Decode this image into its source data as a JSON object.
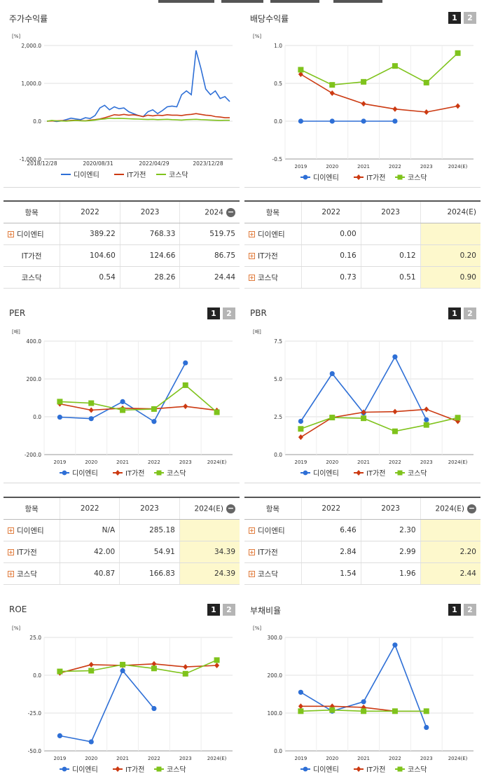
{
  "top_tabs": [
    "",
    "",
    "",
    ""
  ],
  "panels": [
    {
      "id": "stock-return",
      "title": "주가수익률",
      "buttons": []
    },
    {
      "id": "dividend",
      "title": "배당수익률",
      "buttons": [
        "1",
        "2"
      ]
    },
    {
      "id": "per",
      "title": "PER",
      "buttons": [
        "1",
        "2"
      ]
    },
    {
      "id": "pbr",
      "title": "PBR",
      "buttons": [
        "1",
        "2"
      ]
    },
    {
      "id": "roe",
      "title": "ROE",
      "buttons": [
        "1",
        "2"
      ]
    },
    {
      "id": "debt",
      "title": "부채비율",
      "buttons": [
        "1",
        "2"
      ]
    }
  ],
  "colors": {
    "blue": "#2e6fd6",
    "red": "#cc3a12",
    "green": "#7fc31c"
  },
  "legend": [
    "디이엔티",
    "IT가전",
    "코스닥"
  ],
  "chart_data": [
    {
      "id": "stock-return",
      "type": "line",
      "unit": "[%]",
      "ylim": [
        -1000,
        2000
      ],
      "yticks": [
        "2,000.0",
        "1,000.0",
        "0.0",
        "-1,000.0"
      ],
      "xticks": [
        "2018/12/28",
        "2020/08/31",
        "2022/04/29",
        "2023/12/28"
      ],
      "series": [
        {
          "name": "디이엔티",
          "color": "#2e6fd6",
          "values": [
            0,
            10,
            -10,
            5,
            40,
            80,
            60,
            40,
            90,
            70,
            150,
            350,
            420,
            300,
            380,
            330,
            350,
            250,
            200,
            150,
            120,
            250,
            300,
            200,
            280,
            380,
            400,
            380,
            700,
            800,
            700,
            1870,
            1400,
            850,
            700,
            800,
            600,
            650,
            520
          ]
        },
        {
          "name": "IT가전",
          "color": "#cc3a12",
          "values": [
            0,
            5,
            10,
            15,
            10,
            20,
            25,
            15,
            10,
            30,
            40,
            60,
            90,
            130,
            170,
            160,
            180,
            160,
            170,
            150,
            120,
            160,
            140,
            160,
            150,
            170,
            160,
            160,
            150,
            170,
            180,
            200,
            180,
            160,
            150,
            120,
            110,
            90,
            90
          ]
        },
        {
          "name": "코스닥",
          "color": "#7fc31c",
          "values": [
            0,
            20,
            10,
            5,
            0,
            10,
            20,
            10,
            5,
            15,
            30,
            50,
            60,
            80,
            70,
            75,
            70,
            65,
            60,
            55,
            50,
            45,
            50,
            40,
            45,
            50,
            40,
            35,
            30,
            40,
            45,
            50,
            40,
            35,
            30,
            25,
            20,
            25,
            25
          ]
        }
      ]
    },
    {
      "id": "dividend",
      "type": "line",
      "unit": "[%]",
      "ylim": [
        -0.5,
        1.0
      ],
      "yticks": [
        "1.0",
        "0.5",
        "0.0",
        "-0.5"
      ],
      "xticks": [
        "2019",
        "2020",
        "2021",
        "2022",
        "2023",
        "2024(E)"
      ],
      "series": [
        {
          "name": "디이엔티",
          "color": "#2e6fd6",
          "marker": "circle",
          "values": [
            0.0,
            0.0,
            0.0,
            0.0,
            null,
            null
          ]
        },
        {
          "name": "IT가전",
          "color": "#cc3a12",
          "marker": "diamond",
          "values": [
            0.62,
            0.37,
            0.23,
            0.16,
            0.12,
            0.2
          ]
        },
        {
          "name": "코스닥",
          "color": "#7fc31c",
          "marker": "square",
          "values": [
            0.68,
            0.48,
            0.52,
            0.73,
            0.51,
            0.9
          ]
        }
      ]
    },
    {
      "id": "per",
      "type": "line",
      "unit": "[배]",
      "ylim": [
        -200,
        400
      ],
      "yticks": [
        "400.0",
        "200.0",
        "0.0",
        "-200.0"
      ],
      "xticks": [
        "2019",
        "2020",
        "2021",
        "2022",
        "2023",
        "2024(E)"
      ],
      "series": [
        {
          "name": "디이엔티",
          "color": "#2e6fd6",
          "marker": "circle",
          "values": [
            -2,
            -10,
            80,
            -25,
            285,
            null
          ]
        },
        {
          "name": "IT가전",
          "color": "#cc3a12",
          "marker": "diamond",
          "values": [
            68,
            35,
            45,
            42,
            55,
            34
          ]
        },
        {
          "name": "코스닥",
          "color": "#7fc31c",
          "marker": "square",
          "values": [
            80,
            72,
            35,
            41,
            167,
            24
          ]
        }
      ]
    },
    {
      "id": "pbr",
      "type": "line",
      "unit": "[배]",
      "ylim": [
        0,
        7.5
      ],
      "yticks": [
        "7.5",
        "5.0",
        "2.5",
        "0.0"
      ],
      "xticks": [
        "2019",
        "2020",
        "2021",
        "2022",
        "2023",
        "2024(E)"
      ],
      "series": [
        {
          "name": "디이엔티",
          "color": "#2e6fd6",
          "marker": "circle",
          "values": [
            2.2,
            5.35,
            2.75,
            6.46,
            2.3,
            null
          ]
        },
        {
          "name": "IT가전",
          "color": "#cc3a12",
          "marker": "diamond",
          "values": [
            1.15,
            2.45,
            2.8,
            2.84,
            2.99,
            2.2
          ]
        },
        {
          "name": "코스닥",
          "color": "#7fc31c",
          "marker": "square",
          "values": [
            1.7,
            2.45,
            2.4,
            1.54,
            1.96,
            2.44
          ]
        }
      ]
    },
    {
      "id": "roe",
      "type": "line",
      "unit": "[%]",
      "ylim": [
        -50,
        25
      ],
      "yticks": [
        "25.0",
        "0.0",
        "-25.0",
        "-50.0"
      ],
      "xticks": [
        "2019",
        "2020",
        "2021",
        "2022",
        "2023",
        "2024(E)"
      ],
      "series": [
        {
          "name": "디이엔티",
          "color": "#2e6fd6",
          "marker": "circle",
          "values": [
            -40,
            -44,
            3,
            -22,
            null,
            null
          ]
        },
        {
          "name": "IT가전",
          "color": "#cc3a12",
          "marker": "diamond",
          "values": [
            1.5,
            7,
            6.5,
            7.5,
            5.5,
            6.5
          ]
        },
        {
          "name": "코스닥",
          "color": "#7fc31c",
          "marker": "square",
          "values": [
            2.5,
            3,
            7,
            4.5,
            1,
            10
          ]
        }
      ]
    },
    {
      "id": "debt",
      "type": "line",
      "unit": "[%]",
      "ylim": [
        0,
        300
      ],
      "yticks": [
        "300.0",
        "200.0",
        "100.0",
        "0.0"
      ],
      "xticks": [
        "2019",
        "2020",
        "2021",
        "2022",
        "2023",
        "2024(E)"
      ],
      "series": [
        {
          "name": "디이엔티",
          "color": "#2e6fd6",
          "marker": "circle",
          "values": [
            155,
            105,
            130,
            280,
            62,
            null
          ]
        },
        {
          "name": "IT가전",
          "color": "#cc3a12",
          "marker": "diamond",
          "values": [
            118,
            118,
            115,
            105,
            105,
            null
          ]
        },
        {
          "name": "코스닥",
          "color": "#7fc31c",
          "marker": "square",
          "values": [
            105,
            108,
            105,
            105,
            105,
            null
          ]
        }
      ]
    }
  ],
  "tables": [
    {
      "id": "t-return",
      "headers": [
        "항목",
        "2022",
        "2023",
        "2024"
      ],
      "header_minus": true,
      "highlight_last": false,
      "rows": [
        {
          "label": "디이엔티",
          "plus": true,
          "values": [
            "389.22",
            "768.33",
            "519.75"
          ]
        },
        {
          "label": "IT가전",
          "plus": false,
          "values": [
            "104.60",
            "124.66",
            "86.75"
          ]
        },
        {
          "label": "코스닥",
          "plus": false,
          "values": [
            "0.54",
            "28.26",
            "24.44"
          ]
        }
      ]
    },
    {
      "id": "t-dividend",
      "headers": [
        "항목",
        "2022",
        "2023",
        "2024(E)"
      ],
      "header_minus": false,
      "highlight_last": true,
      "rows": [
        {
          "label": "디이엔티",
          "plus": true,
          "values": [
            "0.00",
            "",
            ""
          ]
        },
        {
          "label": "IT가전",
          "plus": true,
          "values": [
            "0.16",
            "0.12",
            "0.20"
          ]
        },
        {
          "label": "코스닥",
          "plus": true,
          "values": [
            "0.73",
            "0.51",
            "0.90"
          ]
        }
      ]
    },
    {
      "id": "t-per",
      "headers": [
        "항목",
        "2022",
        "2023",
        "2024(E)"
      ],
      "header_minus": true,
      "highlight_last": true,
      "rows": [
        {
          "label": "디이엔티",
          "plus": true,
          "values": [
            "N/A",
            "285.18",
            ""
          ]
        },
        {
          "label": "IT가전",
          "plus": true,
          "values": [
            "42.00",
            "54.91",
            "34.39"
          ]
        },
        {
          "label": "코스닥",
          "plus": true,
          "values": [
            "40.87",
            "166.83",
            "24.39"
          ]
        }
      ]
    },
    {
      "id": "t-pbr",
      "headers": [
        "항목",
        "2022",
        "2023",
        "2024(E)"
      ],
      "header_minus": true,
      "highlight_last": true,
      "rows": [
        {
          "label": "디이엔티",
          "plus": true,
          "values": [
            "6.46",
            "2.30",
            ""
          ]
        },
        {
          "label": "IT가전",
          "plus": true,
          "values": [
            "2.84",
            "2.99",
            "2.20"
          ]
        },
        {
          "label": "코스닥",
          "plus": true,
          "values": [
            "1.54",
            "1.96",
            "2.44"
          ]
        }
      ]
    }
  ]
}
